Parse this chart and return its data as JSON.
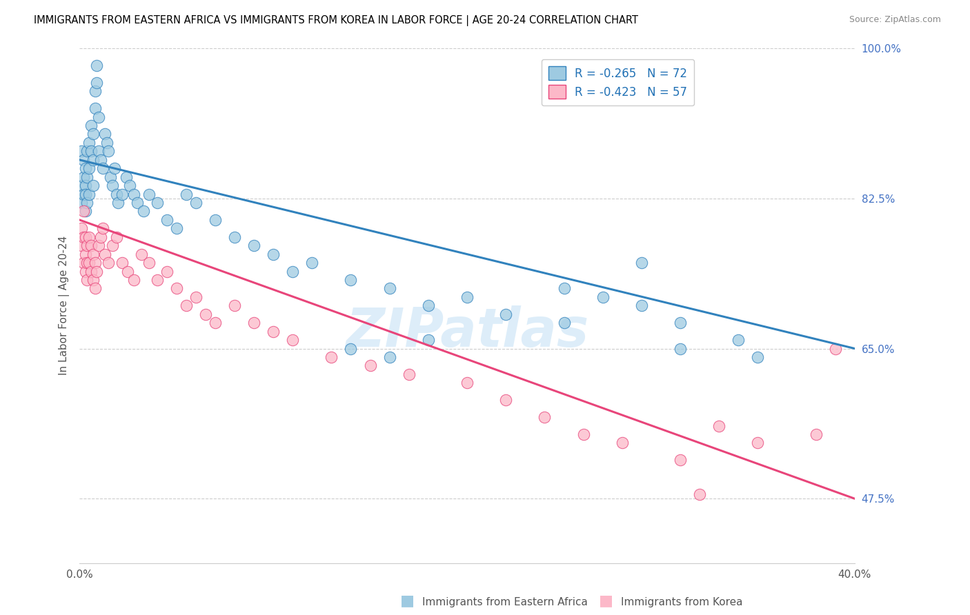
{
  "title": "IMMIGRANTS FROM EASTERN AFRICA VS IMMIGRANTS FROM KOREA IN LABOR FORCE | AGE 20-24 CORRELATION CHART",
  "source": "Source: ZipAtlas.com",
  "ylabel": "In Labor Force | Age 20-24",
  "xmin": 0.0,
  "xmax": 0.4,
  "ymin": 0.4,
  "ymax": 1.0,
  "xticks": [
    0.0,
    0.1,
    0.2,
    0.3,
    0.4
  ],
  "xtick_labels": [
    "0.0%",
    "",
    "",
    "",
    "40.0%"
  ],
  "ytick_labels_right": [
    "100.0%",
    "82.5%",
    "65.0%",
    "47.5%"
  ],
  "ytick_values_right": [
    1.0,
    0.825,
    0.65,
    0.475
  ],
  "legend_labels": [
    "Immigrants from Eastern Africa",
    "Immigrants from Korea"
  ],
  "r_eastern": -0.265,
  "n_eastern": 72,
  "r_korea": -0.423,
  "n_korea": 57,
  "blue_color": "#9ecae1",
  "pink_color": "#fcb8c8",
  "blue_line_color": "#3182bd",
  "pink_line_color": "#e8457a",
  "watermark": "ZIPatlas",
  "eastern_africa_x": [
    0.001,
    0.001,
    0.001,
    0.002,
    0.002,
    0.002,
    0.003,
    0.003,
    0.003,
    0.003,
    0.004,
    0.004,
    0.004,
    0.005,
    0.005,
    0.005,
    0.006,
    0.006,
    0.007,
    0.007,
    0.007,
    0.008,
    0.008,
    0.009,
    0.009,
    0.01,
    0.01,
    0.011,
    0.012,
    0.013,
    0.014,
    0.015,
    0.016,
    0.017,
    0.018,
    0.019,
    0.02,
    0.022,
    0.024,
    0.026,
    0.028,
    0.03,
    0.033,
    0.036,
    0.04,
    0.045,
    0.05,
    0.055,
    0.06,
    0.07,
    0.08,
    0.09,
    0.1,
    0.11,
    0.12,
    0.14,
    0.16,
    0.18,
    0.2,
    0.22,
    0.25,
    0.27,
    0.29,
    0.31,
    0.34,
    0.29,
    0.25,
    0.18,
    0.14,
    0.16,
    0.31,
    0.35
  ],
  "eastern_africa_y": [
    0.84,
    0.82,
    0.88,
    0.85,
    0.83,
    0.87,
    0.84,
    0.81,
    0.86,
    0.83,
    0.88,
    0.85,
    0.82,
    0.89,
    0.86,
    0.83,
    0.91,
    0.88,
    0.9,
    0.87,
    0.84,
    0.93,
    0.95,
    0.98,
    0.96,
    0.92,
    0.88,
    0.87,
    0.86,
    0.9,
    0.89,
    0.88,
    0.85,
    0.84,
    0.86,
    0.83,
    0.82,
    0.83,
    0.85,
    0.84,
    0.83,
    0.82,
    0.81,
    0.83,
    0.82,
    0.8,
    0.79,
    0.83,
    0.82,
    0.8,
    0.78,
    0.77,
    0.76,
    0.74,
    0.75,
    0.73,
    0.72,
    0.7,
    0.71,
    0.69,
    0.72,
    0.71,
    0.7,
    0.68,
    0.66,
    0.75,
    0.68,
    0.66,
    0.65,
    0.64,
    0.65,
    0.64
  ],
  "korea_x": [
    0.001,
    0.001,
    0.002,
    0.002,
    0.002,
    0.003,
    0.003,
    0.003,
    0.004,
    0.004,
    0.004,
    0.005,
    0.005,
    0.006,
    0.006,
    0.007,
    0.007,
    0.008,
    0.008,
    0.009,
    0.01,
    0.011,
    0.012,
    0.013,
    0.015,
    0.017,
    0.019,
    0.022,
    0.025,
    0.028,
    0.032,
    0.036,
    0.04,
    0.045,
    0.05,
    0.055,
    0.06,
    0.065,
    0.07,
    0.08,
    0.09,
    0.1,
    0.11,
    0.13,
    0.15,
    0.17,
    0.2,
    0.22,
    0.24,
    0.26,
    0.28,
    0.31,
    0.33,
    0.35,
    0.38,
    0.39,
    0.32
  ],
  "korea_y": [
    0.79,
    0.77,
    0.81,
    0.78,
    0.75,
    0.78,
    0.76,
    0.74,
    0.77,
    0.75,
    0.73,
    0.78,
    0.75,
    0.77,
    0.74,
    0.76,
    0.73,
    0.75,
    0.72,
    0.74,
    0.77,
    0.78,
    0.79,
    0.76,
    0.75,
    0.77,
    0.78,
    0.75,
    0.74,
    0.73,
    0.76,
    0.75,
    0.73,
    0.74,
    0.72,
    0.7,
    0.71,
    0.69,
    0.68,
    0.7,
    0.68,
    0.67,
    0.66,
    0.64,
    0.63,
    0.62,
    0.61,
    0.59,
    0.57,
    0.55,
    0.54,
    0.52,
    0.56,
    0.54,
    0.55,
    0.65,
    0.48
  ]
}
